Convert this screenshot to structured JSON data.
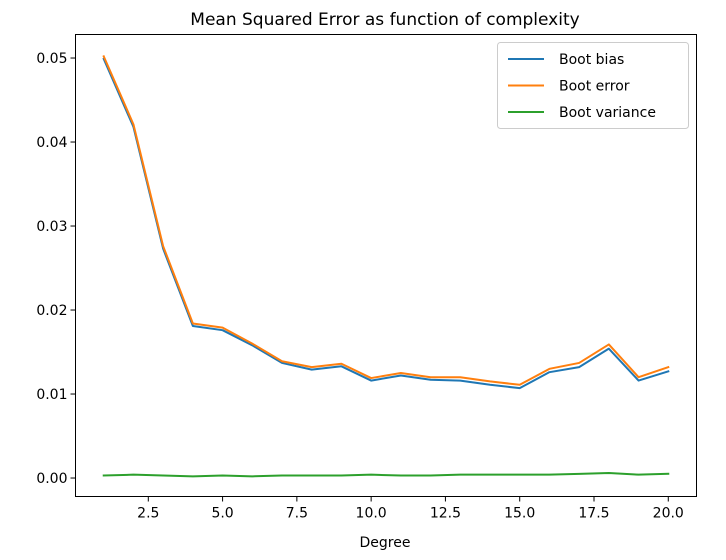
{
  "chart_data": {
    "type": "line",
    "title": "Mean Squared Error as function of complexity",
    "xlabel": "Degree",
    "ylabel": "",
    "xlim": [
      0.05,
      20.95
    ],
    "ylim": [
      -0.0022,
      0.0528
    ],
    "xticks": [
      2.5,
      5.0,
      7.5,
      10.0,
      12.5,
      15.0,
      17.5,
      20.0
    ],
    "xtick_labels": [
      "2.5",
      "5.0",
      "7.5",
      "10.0",
      "12.5",
      "15.0",
      "17.5",
      "20.0"
    ],
    "yticks": [
      0.0,
      0.01,
      0.02,
      0.03,
      0.04,
      0.05
    ],
    "ytick_labels": [
      "0.00",
      "0.01",
      "0.02",
      "0.03",
      "0.04",
      "0.05"
    ],
    "grid": false,
    "legend_position": "top-right",
    "x": [
      1,
      2,
      3,
      4,
      5,
      6,
      7,
      8,
      9,
      10,
      11,
      12,
      13,
      14,
      15,
      16,
      17,
      18,
      19,
      20
    ],
    "series": [
      {
        "name": "Boot bias",
        "color": "#1f77b4",
        "values": [
          0.0499,
          0.0418,
          0.0273,
          0.0181,
          0.0176,
          0.0158,
          0.0137,
          0.0129,
          0.0133,
          0.0116,
          0.0122,
          0.0117,
          0.0116,
          0.0111,
          0.0107,
          0.0126,
          0.0132,
          0.0154,
          0.0116,
          0.0127
        ]
      },
      {
        "name": "Boot error",
        "color": "#ff7f0e",
        "values": [
          0.0502,
          0.0421,
          0.0276,
          0.0184,
          0.0179,
          0.016,
          0.0139,
          0.0132,
          0.0136,
          0.0119,
          0.0125,
          0.012,
          0.012,
          0.0115,
          0.0111,
          0.013,
          0.0137,
          0.0159,
          0.012,
          0.0132
        ]
      },
      {
        "name": "Boot variance",
        "color": "#2ca02c",
        "values": [
          0.0003,
          0.0004,
          0.0003,
          0.0002,
          0.0003,
          0.0002,
          0.0003,
          0.0003,
          0.0003,
          0.0004,
          0.0003,
          0.0003,
          0.0004,
          0.0004,
          0.0004,
          0.0004,
          0.0005,
          0.0006,
          0.0004,
          0.0005
        ]
      }
    ]
  }
}
